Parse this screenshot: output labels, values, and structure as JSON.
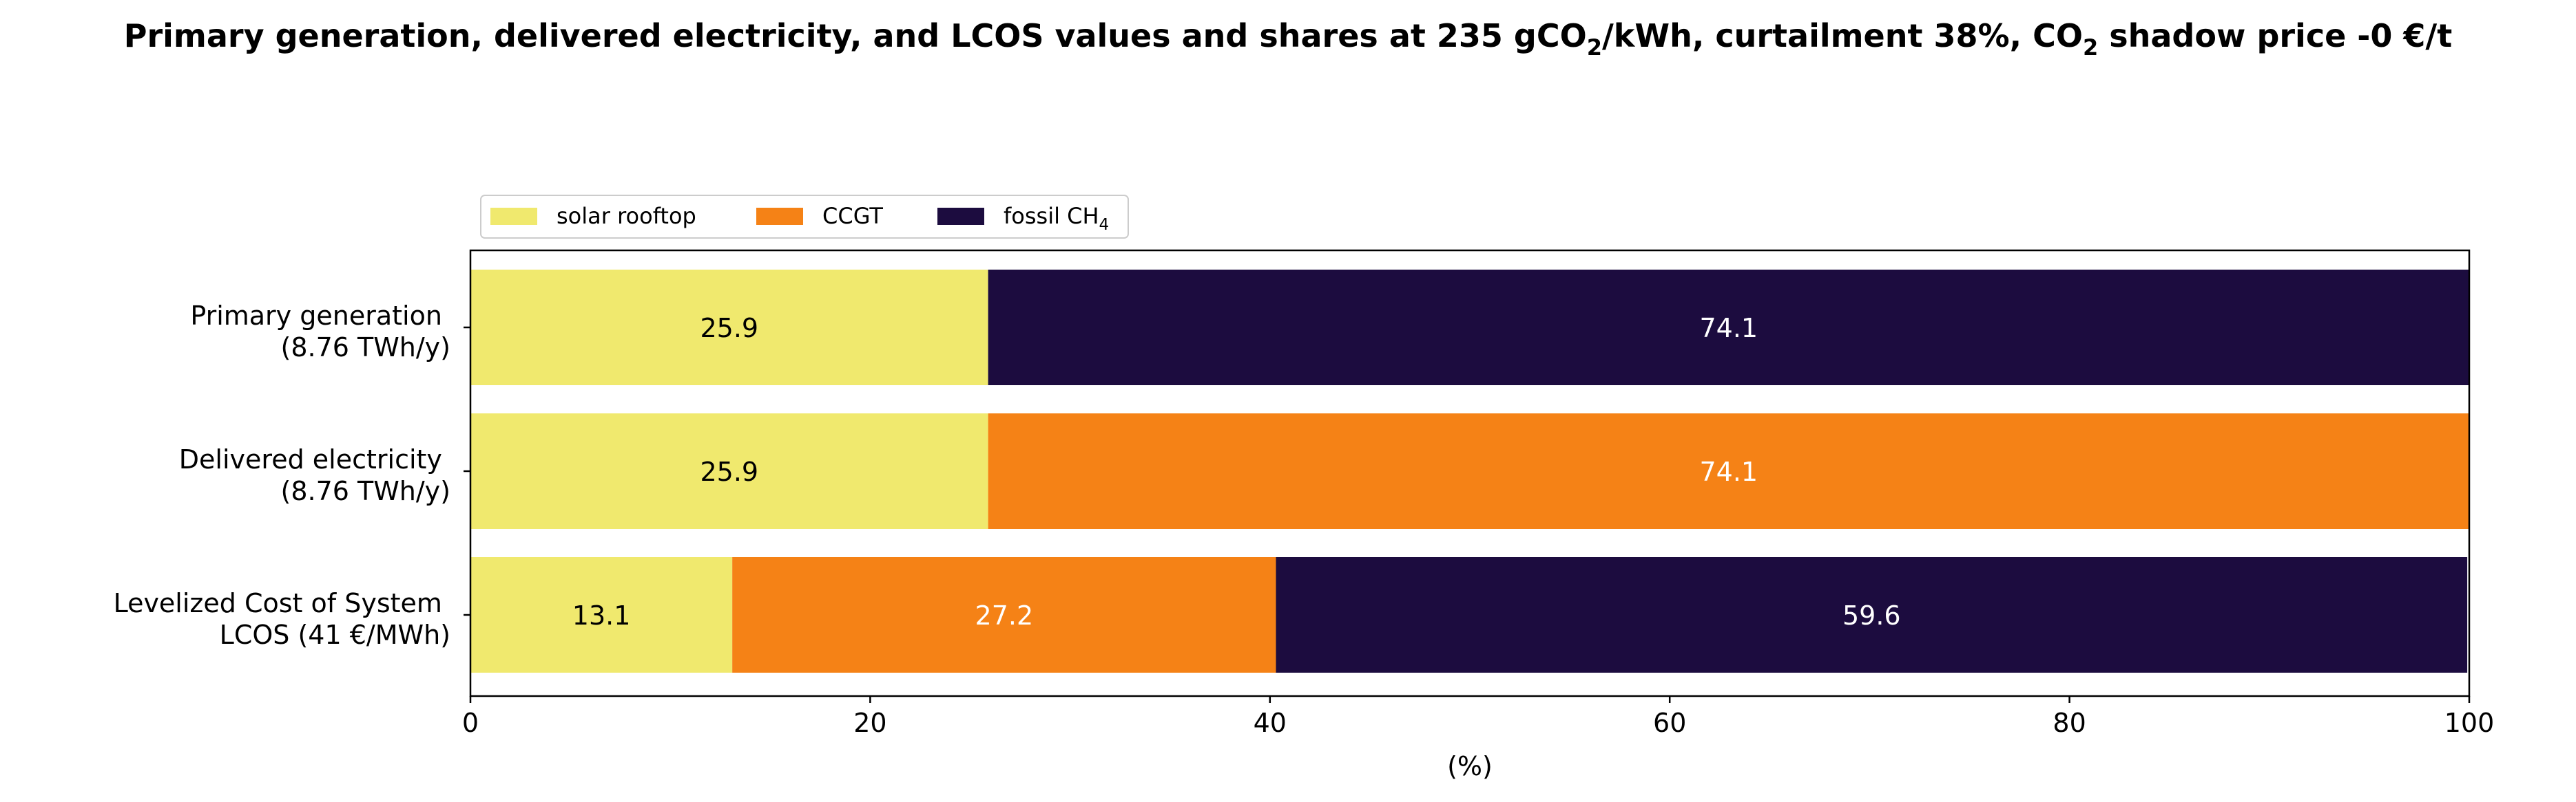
{
  "chart_data": {
    "type": "bar",
    "orientation": "horizontal",
    "stacked": true,
    "title": {
      "main": "Primary generation, delivered electricity, and LCOS values and shares at 235 gCO",
      "sub1": "2",
      "mid": "/kWh, curtailment 38%, CO",
      "sub2": "2",
      "end": " shadow price -0 €/t"
    },
    "xlabel": "(%)",
    "ylabel": "",
    "xlim": [
      0,
      100
    ],
    "xticks": [
      0,
      20,
      40,
      60,
      80,
      100
    ],
    "xtick_labels": [
      "0",
      "20",
      "40",
      "60",
      "80",
      "100"
    ],
    "grid": false,
    "legend": {
      "placement": "above-top-left",
      "ncol": 3
    },
    "categories": [
      {
        "line1": "Primary generation ",
        "line2": "(8.76 TWh/y)"
      },
      {
        "line1": "Delivered electricity ",
        "line2": "(8.76 TWh/y)"
      },
      {
        "line1": "Levelized Cost of System ",
        "line2": "LCOS  (41 €/MWh)"
      }
    ],
    "series": [
      {
        "name": "solar rooftop",
        "name_sub": "",
        "color": "#f0e96e",
        "text_color": "#000000",
        "values": [
          25.9,
          25.9,
          13.1
        ],
        "labels": [
          "25.9",
          "25.9",
          "13.1"
        ]
      },
      {
        "name": "CCGT",
        "name_sub": "",
        "color": "#f58216",
        "text_color": "#ffffff",
        "values": [
          0,
          74.1,
          27.2
        ],
        "labels": [
          "",
          "74.1",
          "27.2"
        ]
      },
      {
        "name": "fossil CH",
        "name_sub": "4",
        "color": "#1c0c3f",
        "text_color": "#ffffff",
        "values": [
          74.1,
          0,
          59.6
        ],
        "labels": [
          "74.1",
          "",
          "59.6"
        ]
      }
    ]
  }
}
